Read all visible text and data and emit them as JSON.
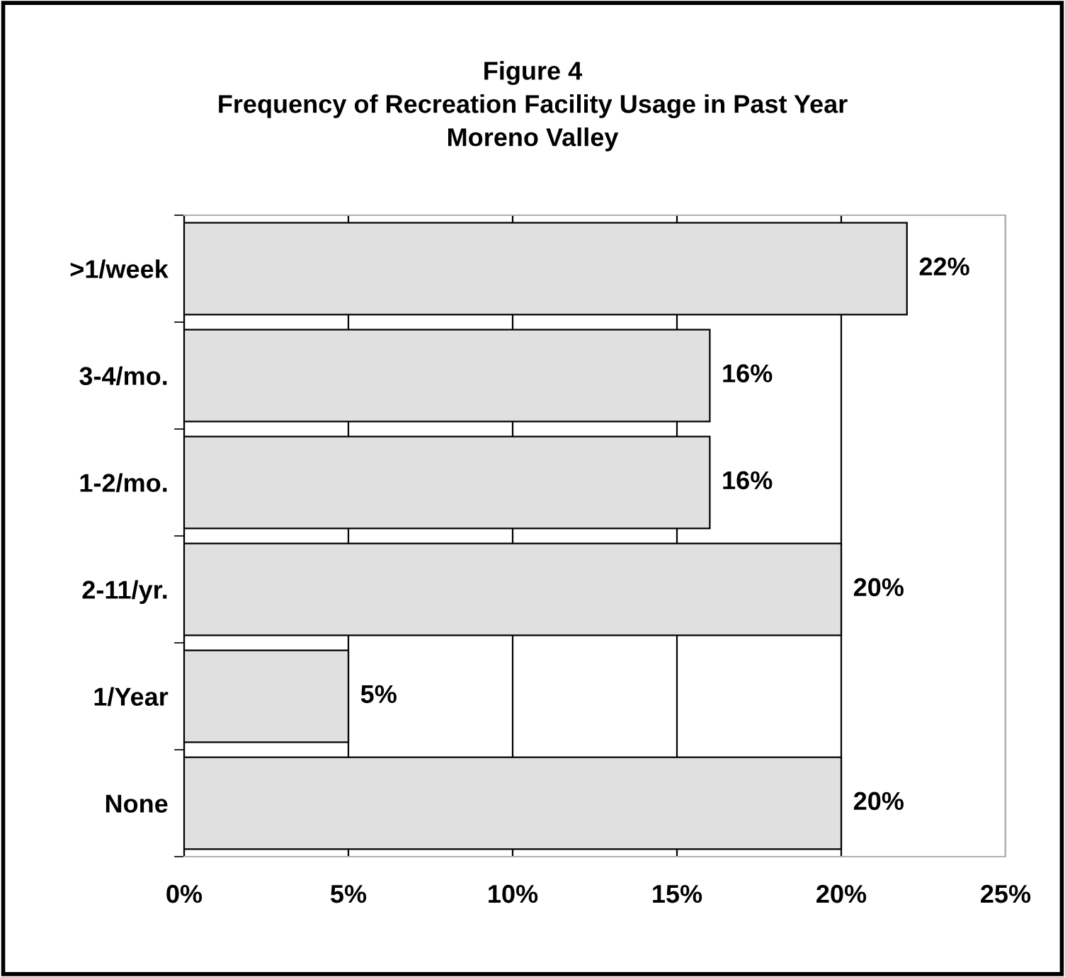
{
  "chart_data": {
    "type": "bar",
    "orientation": "horizontal",
    "title": "Figure 4\nFrequency of Recreation Facility Usage in Past Year\nMoreno Valley",
    "categories": [
      ">1/week",
      "3-4/mo.",
      "1-2/mo.",
      "2-11/yr.",
      "1/Year",
      "None"
    ],
    "values": [
      22,
      16,
      16,
      20,
      5,
      20
    ],
    "value_labels": [
      "22%",
      "16%",
      "16%",
      "20%",
      "5%",
      "20%"
    ],
    "color": "#e0e0e0",
    "xlim": [
      0,
      25
    ],
    "xticks": [
      {
        "value": 0,
        "label": "0%"
      },
      {
        "value": 5,
        "label": "5%"
      },
      {
        "value": 10,
        "label": "10%"
      },
      {
        "value": 15,
        "label": "15%"
      },
      {
        "value": 20,
        "label": "20%"
      },
      {
        "value": 25,
        "label": "25%"
      }
    ],
    "grid": "x",
    "legend": false
  }
}
